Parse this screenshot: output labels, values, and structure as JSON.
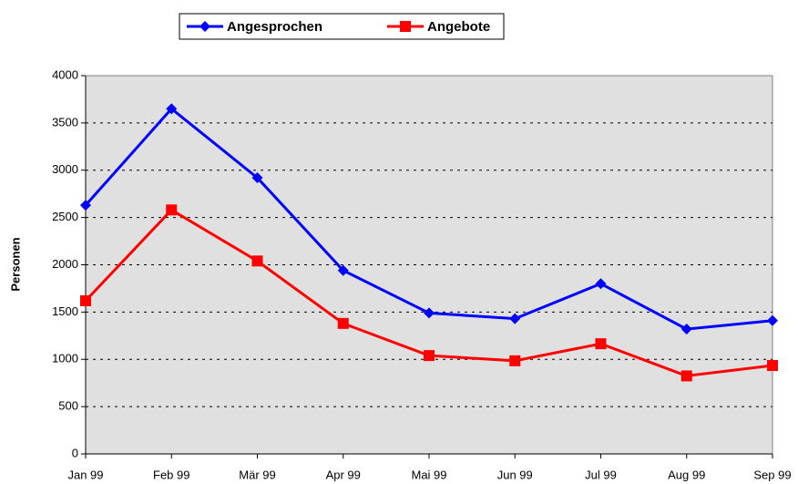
{
  "chart_data": {
    "type": "line",
    "y_label": "Personen",
    "categories": [
      "Jan 99",
      "Feb 99",
      "Mär 99",
      "Apr 99",
      "Mai 99",
      "Jun 99",
      "Jul 99",
      "Aug 99",
      "Sep 99"
    ],
    "series": [
      {
        "name": "Angesprochen",
        "color": "#0000ff",
        "marker": "diamond",
        "values": [
          2630,
          3650,
          2920,
          1940,
          1490,
          1430,
          1800,
          1320,
          1410
        ]
      },
      {
        "name": "Angebote",
        "color": "#ff0000",
        "marker": "square",
        "values": [
          1620,
          2580,
          2040,
          1380,
          1040,
          985,
          1165,
          825,
          935
        ]
      }
    ],
    "ylim": [
      0,
      4000
    ],
    "yticks": [
      0,
      500,
      1000,
      1500,
      2000,
      2500,
      3000,
      3500,
      4000
    ],
    "grid": true,
    "legend": "top"
  }
}
